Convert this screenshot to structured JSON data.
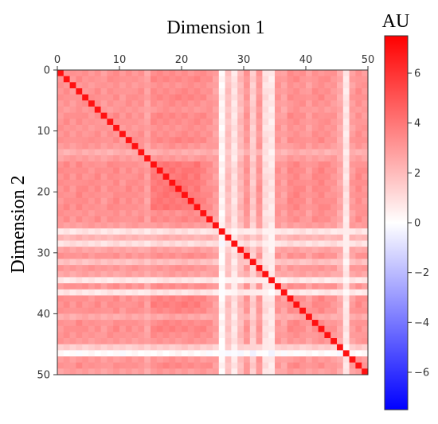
{
  "chart_data": {
    "type": "heatmap",
    "xlabel": "Dimension 1",
    "ylabel": "Dimension 2",
    "xlim": [
      0,
      50
    ],
    "ylim": [
      50,
      0
    ],
    "x_ticks": [
      "0",
      "10",
      "20",
      "30",
      "40",
      "50"
    ],
    "y_ticks": [
      "0",
      "10",
      "20",
      "30",
      "40",
      "50"
    ],
    "colorbar": {
      "label": "AU",
      "range": [
        -7.5,
        7.5
      ],
      "ticks": [
        "6",
        "4",
        "2",
        "0",
        "−2",
        "−4",
        "−6"
      ],
      "tick_values": [
        6,
        4,
        2,
        0,
        -2,
        -4,
        -6
      ],
      "colormap": "bwr",
      "color_low": "#0000ff",
      "color_mid": "#ffffff",
      "color_high": "#ff0000"
    },
    "size": 50,
    "diagonal_value": 7.0,
    "row_strength": [
      3.2,
      3.4,
      3.1,
      3.3,
      3.5,
      3.2,
      3.0,
      3.4,
      3.3,
      3.1,
      3.2,
      3.5,
      3.0,
      2.2,
      2.8,
      4.0,
      4.2,
      4.0,
      4.1,
      4.3,
      4.0,
      3.9,
      4.1,
      3.2,
      3.4,
      2.8,
      0.4,
      2.0,
      0.6,
      2.6,
      3.2,
      1.6,
      3.0,
      2.6,
      0.3,
      3.2,
      0.3,
      3.6,
      3.8,
      3.5,
      2.4,
      3.4,
      3.6,
      3.2,
      3.0,
      1.2,
      -0.4,
      3.0,
      3.4,
      2.8
    ],
    "col_strength": [
      3.1,
      3.3,
      3.0,
      3.4,
      3.2,
      3.1,
      3.3,
      2.9,
      3.2,
      3.4,
      3.0,
      3.3,
      3.1,
      3.2,
      2.6,
      3.9,
      4.0,
      4.1,
      4.2,
      4.0,
      4.1,
      3.8,
      4.0,
      3.5,
      3.2,
      2.7,
      -0.2,
      1.6,
      0.4,
      1.8,
      3.0,
      1.2,
      3.0,
      0.6,
      0.2,
      3.0,
      2.6,
      3.4,
      3.5,
      3.2,
      2.8,
      3.3,
      3.5,
      3.2,
      3.0,
      2.4,
      0.3,
      2.8,
      3.3,
      3.0
    ]
  }
}
